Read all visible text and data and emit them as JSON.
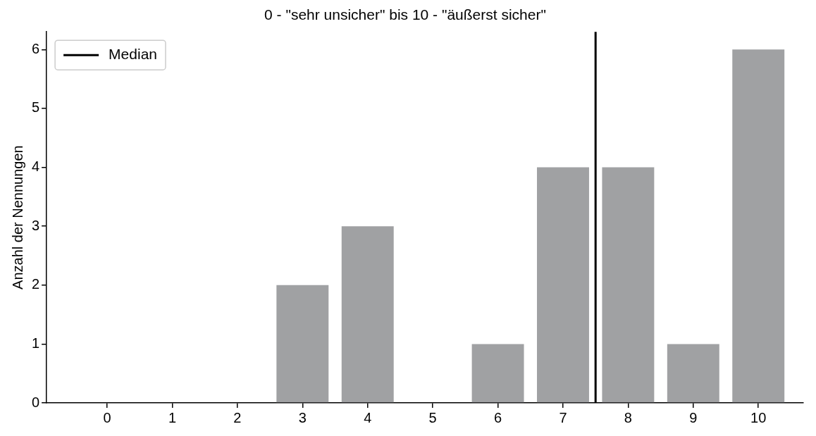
{
  "chart_data": {
    "type": "bar",
    "title": "0 - \"sehr unsicher\" bis 10 - \"äußerst sicher\"",
    "ylabel": "Anzahl der Nennungen",
    "x": [
      0,
      1,
      2,
      3,
      4,
      5,
      6,
      7,
      8,
      9,
      10
    ],
    "values": [
      0,
      0,
      0,
      2,
      3,
      0,
      1,
      4,
      4,
      1,
      6
    ],
    "color": "#a0a1a3",
    "xlim": [
      -0.93,
      10.69
    ],
    "xticks": [
      0,
      1,
      2,
      3,
      4,
      5,
      6,
      7,
      8,
      9,
      10
    ],
    "ylim": [
      0,
      6.3
    ],
    "yticks": [
      0,
      1,
      2,
      3,
      4,
      5,
      6
    ],
    "ref_lines": [
      {
        "axis": "x",
        "value": 7.5,
        "label": "Median",
        "color": "#000000",
        "line_style": "solid"
      }
    ],
    "legend": "top left",
    "grid": false
  }
}
